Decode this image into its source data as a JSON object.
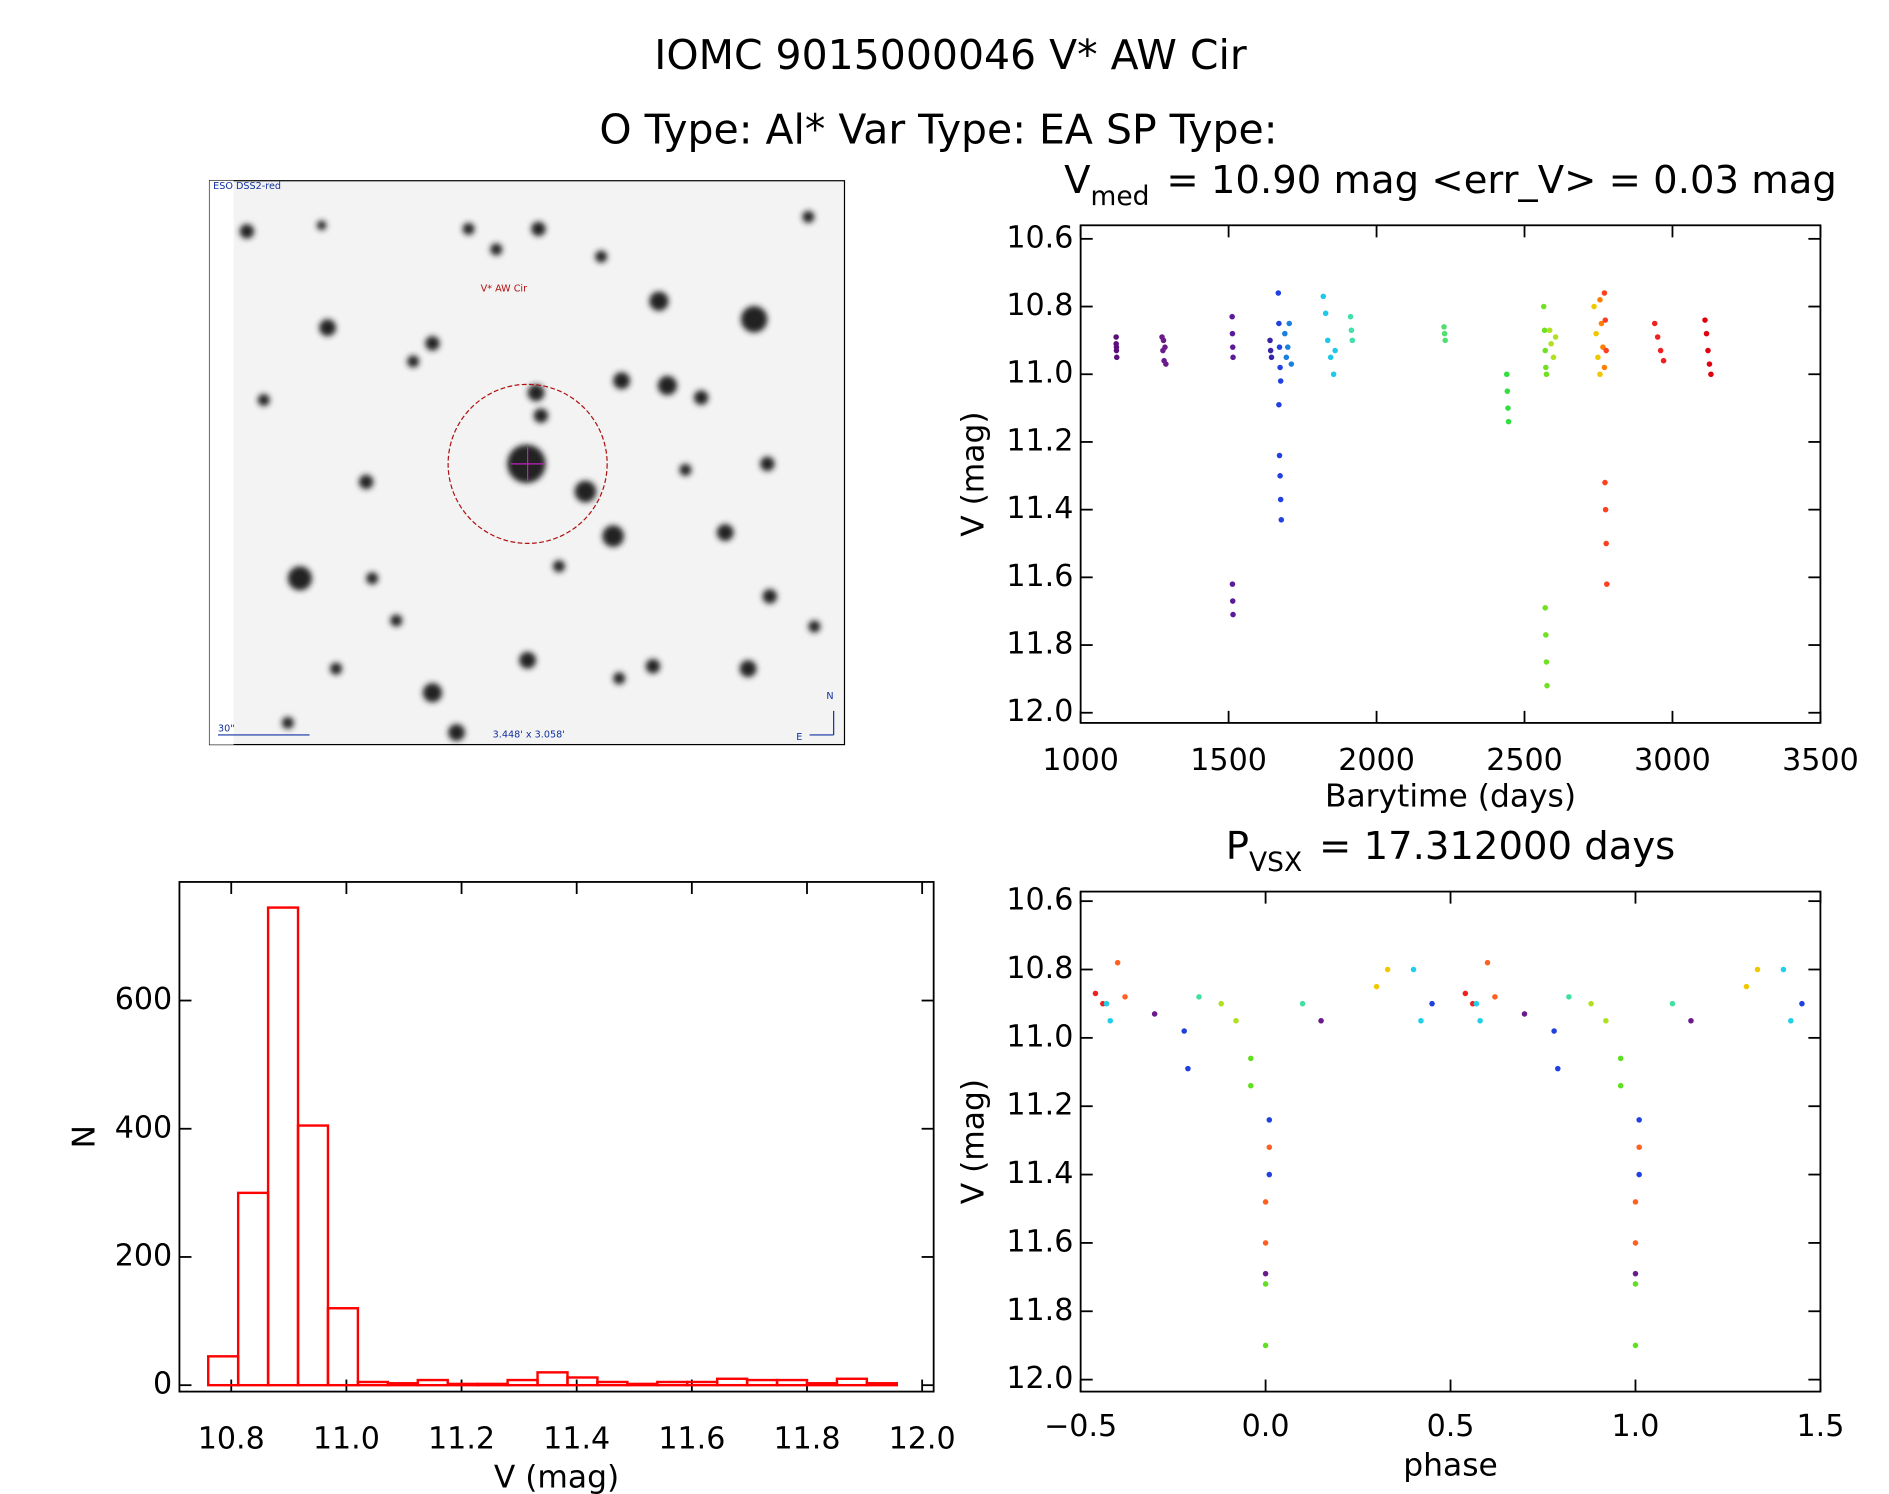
{
  "title": "IOMC 9015000046   V* AW Cir",
  "subtitle": "O Type: Al*  Var Type: EA  SP Type:",
  "image": {
    "survey": "ESO DSS2-red",
    "target": "V* AW Cir",
    "scale": "30\"",
    "size": "3.448' x 3.058'",
    "north": "N",
    "east": "E"
  },
  "chart_data": [
    {
      "type": "scatter",
      "title": [
        "V",
        "med",
        "= 10.90 mag <err_V> = 0.03 mag"
      ],
      "xlabel": "Barytime (days)",
      "ylabel": "V (mag)",
      "xlim": [
        1000,
        3500
      ],
      "xticks": [
        1000,
        1500,
        2000,
        2500,
        3000,
        3500
      ],
      "ylim": [
        12.03,
        10.56
      ],
      "yticks": [
        10.6,
        10.8,
        {
          "value": 11.0,
          "label": "11.0"
        },
        11.2,
        11.4,
        11.6,
        11.8,
        {
          "value": 12.0,
          "label": "12.0"
        }
      ],
      "series": [
        {
          "color": "#5b0f7a",
          "x": [
            1120,
            1120,
            1121,
            1122,
            1121
          ],
          "values": [
            10.89,
            10.91,
            10.93,
            10.95,
            10.92
          ]
        },
        {
          "color": "#6a1a8a",
          "x": [
            1275,
            1278,
            1282,
            1285,
            1288,
            1280
          ],
          "values": [
            10.89,
            10.93,
            10.96,
            10.92,
            10.97,
            10.9
          ]
        },
        {
          "color": "#5a1a9a",
          "x": [
            1512,
            1513,
            1514,
            1515,
            1513,
            1514,
            1515
          ],
          "values": [
            10.83,
            10.88,
            10.92,
            10.95,
            11.62,
            11.67,
            11.71
          ]
        },
        {
          "color": "#3a22a8",
          "x": [
            1640,
            1642,
            1645
          ],
          "values": [
            10.9,
            10.93,
            10.95
          ]
        },
        {
          "color": "#2040e0",
          "x": [
            1668,
            1670,
            1672,
            1674,
            1676,
            1670,
            1672,
            1674,
            1676,
            1678
          ],
          "values": [
            10.76,
            10.85,
            10.92,
            10.98,
            11.02,
            11.09,
            11.24,
            11.3,
            11.37,
            11.43
          ]
        },
        {
          "color": "#1a80e0",
          "x": [
            1690,
            1700,
            1705,
            1712,
            1695
          ],
          "values": [
            10.88,
            10.92,
            10.85,
            10.97,
            10.95
          ]
        },
        {
          "color": "#20c8e8",
          "x": [
            1820,
            1828,
            1835,
            1845,
            1855,
            1860
          ],
          "values": [
            10.77,
            10.82,
            10.9,
            10.95,
            11.0,
            10.93
          ]
        },
        {
          "color": "#40e0a8",
          "x": [
            1912,
            1915,
            1918
          ],
          "values": [
            10.83,
            10.87,
            10.9
          ]
        },
        {
          "color": "#50e070",
          "x": [
            2228,
            2230,
            2232
          ],
          "values": [
            10.86,
            10.88,
            10.9
          ]
        },
        {
          "color": "#30e040",
          "x": [
            2440,
            2442,
            2444,
            2446
          ],
          "values": [
            11.0,
            11.05,
            11.1,
            11.14
          ]
        },
        {
          "color": "#70e020",
          "x": [
            2565,
            2568,
            2570,
            2572,
            2574,
            2570,
            2572,
            2574,
            2576
          ],
          "values": [
            10.8,
            10.87,
            10.93,
            10.98,
            11.0,
            11.69,
            11.77,
            11.85,
            11.92
          ]
        },
        {
          "color": "#b0e020",
          "x": [
            2585,
            2590,
            2598,
            2605
          ],
          "values": [
            10.87,
            10.91,
            10.95,
            10.89
          ]
        },
        {
          "color": "#f0c800",
          "x": [
            2735,
            2742,
            2748,
            2755
          ],
          "values": [
            10.8,
            10.88,
            10.95,
            11.0
          ]
        },
        {
          "color": "#ff8000",
          "x": [
            2755,
            2760,
            2765,
            2770
          ],
          "values": [
            10.78,
            10.85,
            10.92,
            10.98
          ]
        },
        {
          "color": "#ff4020",
          "x": [
            2770,
            2773,
            2776,
            2772,
            2774,
            2776,
            2778
          ],
          "values": [
            10.76,
            10.84,
            10.93,
            11.32,
            11.4,
            11.5,
            11.62
          ]
        },
        {
          "color": "#f02020",
          "x": [
            2940,
            2950,
            2960,
            2970
          ],
          "values": [
            10.85,
            10.89,
            10.93,
            10.96
          ]
        },
        {
          "color": "#e00010",
          "x": [
            3110,
            3115,
            3120,
            3125,
            3130
          ],
          "values": [
            10.84,
            10.88,
            10.93,
            10.97,
            11.0
          ]
        }
      ]
    },
    {
      "type": "scatter",
      "title": [
        "P",
        "VSX",
        "= 17.312000 days"
      ],
      "xlabel": "phase",
      "ylabel": "V (mag)",
      "xlim": [
        -0.5,
        1.5
      ],
      "xticks": [
        {
          "value": -0.5,
          "label": "−0.5"
        },
        {
          "value": 0.0,
          "label": "0.0"
        },
        0.5,
        {
          "value": 1.0,
          "label": "1.0"
        },
        1.5
      ],
      "ylim": [
        12.035,
        10.572
      ],
      "yticks": [
        10.6,
        10.8,
        {
          "value": 11.0,
          "label": "11.0"
        },
        11.2,
        11.4,
        11.6,
        11.8,
        {
          "value": 12.0,
          "label": "12.0"
        }
      ],
      "series": [
        {
          "color": "#f02020",
          "x": [
            -0.46,
            -0.44,
            0.54,
            0.56
          ],
          "values": [
            10.87,
            10.9,
            10.87,
            10.9
          ]
        },
        {
          "color": "#ff6020",
          "x": [
            -0.4,
            -0.38,
            0.01,
            0.0,
            0.0,
            0.6,
            0.62,
            1.01,
            1.0,
            1.0
          ],
          "values": [
            10.78,
            10.88,
            11.32,
            11.48,
            11.6,
            10.78,
            10.88,
            11.32,
            11.48,
            11.6
          ]
        },
        {
          "color": "#20d0e8",
          "x": [
            -0.43,
            -0.42,
            0.4,
            0.42,
            0.57,
            0.58,
            1.4,
            1.42
          ],
          "values": [
            10.9,
            10.95,
            10.8,
            10.95,
            10.9,
            10.95,
            10.8,
            10.95
          ]
        },
        {
          "color": "#2040e0",
          "x": [
            -0.22,
            -0.21,
            0.01,
            0.01,
            0.45,
            0.78,
            0.79,
            1.01,
            1.01,
            1.45
          ],
          "values": [
            10.98,
            11.09,
            11.24,
            11.4,
            10.9,
            10.98,
            11.09,
            11.24,
            11.4,
            10.9
          ]
        },
        {
          "color": "#60e020",
          "x": [
            -0.04,
            -0.04,
            0.0,
            0.0,
            0.96,
            0.96,
            1.0,
            1.0
          ],
          "values": [
            11.06,
            11.14,
            11.72,
            11.9,
            11.06,
            11.14,
            11.72,
            11.9
          ]
        },
        {
          "color": "#b0e020",
          "x": [
            -0.12,
            -0.08,
            0.88,
            0.92
          ],
          "values": [
            10.9,
            10.95,
            10.9,
            10.95
          ]
        },
        {
          "color": "#f0c800",
          "x": [
            0.3,
            0.33,
            1.3,
            1.33
          ],
          "values": [
            10.85,
            10.8,
            10.85,
            10.8
          ]
        },
        {
          "color": "#6a1a8a",
          "x": [
            -0.3,
            0.0,
            0.15,
            0.7,
            1.0,
            1.15
          ],
          "values": [
            10.93,
            11.69,
            10.95,
            10.93,
            11.69,
            10.95
          ]
        },
        {
          "color": "#40e0a0",
          "x": [
            -0.18,
            0.1,
            0.82,
            1.1
          ],
          "values": [
            10.88,
            10.9,
            10.88,
            10.9
          ]
        }
      ]
    },
    {
      "type": "histogram",
      "xlabel": "V (mag)",
      "ylabel": "N",
      "color": "#ff0000",
      "xlim": [
        10.71,
        12.02
      ],
      "xticks": [
        10.8,
        {
          "value": 11.0,
          "label": "11.0"
        },
        11.2,
        11.4,
        11.6,
        11.8,
        {
          "value": 12.0,
          "label": "12.0"
        }
      ],
      "ylim": [
        -10,
        785
      ],
      "yticks": [
        0,
        200,
        400,
        600
      ],
      "bins": [
        10.76,
        10.812,
        10.864,
        10.916,
        10.968,
        11.02,
        11.072,
        11.124,
        11.176,
        11.228,
        11.28,
        11.332,
        11.384,
        11.436,
        11.488,
        11.54,
        11.592,
        11.644,
        11.696,
        11.748,
        11.8,
        11.852,
        11.904,
        11.956
      ],
      "values": [
        45,
        300,
        745,
        405,
        120,
        5,
        3,
        8,
        2,
        2,
        8,
        20,
        12,
        5,
        2,
        5,
        5,
        10,
        8,
        8,
        3,
        10,
        3
      ]
    }
  ]
}
